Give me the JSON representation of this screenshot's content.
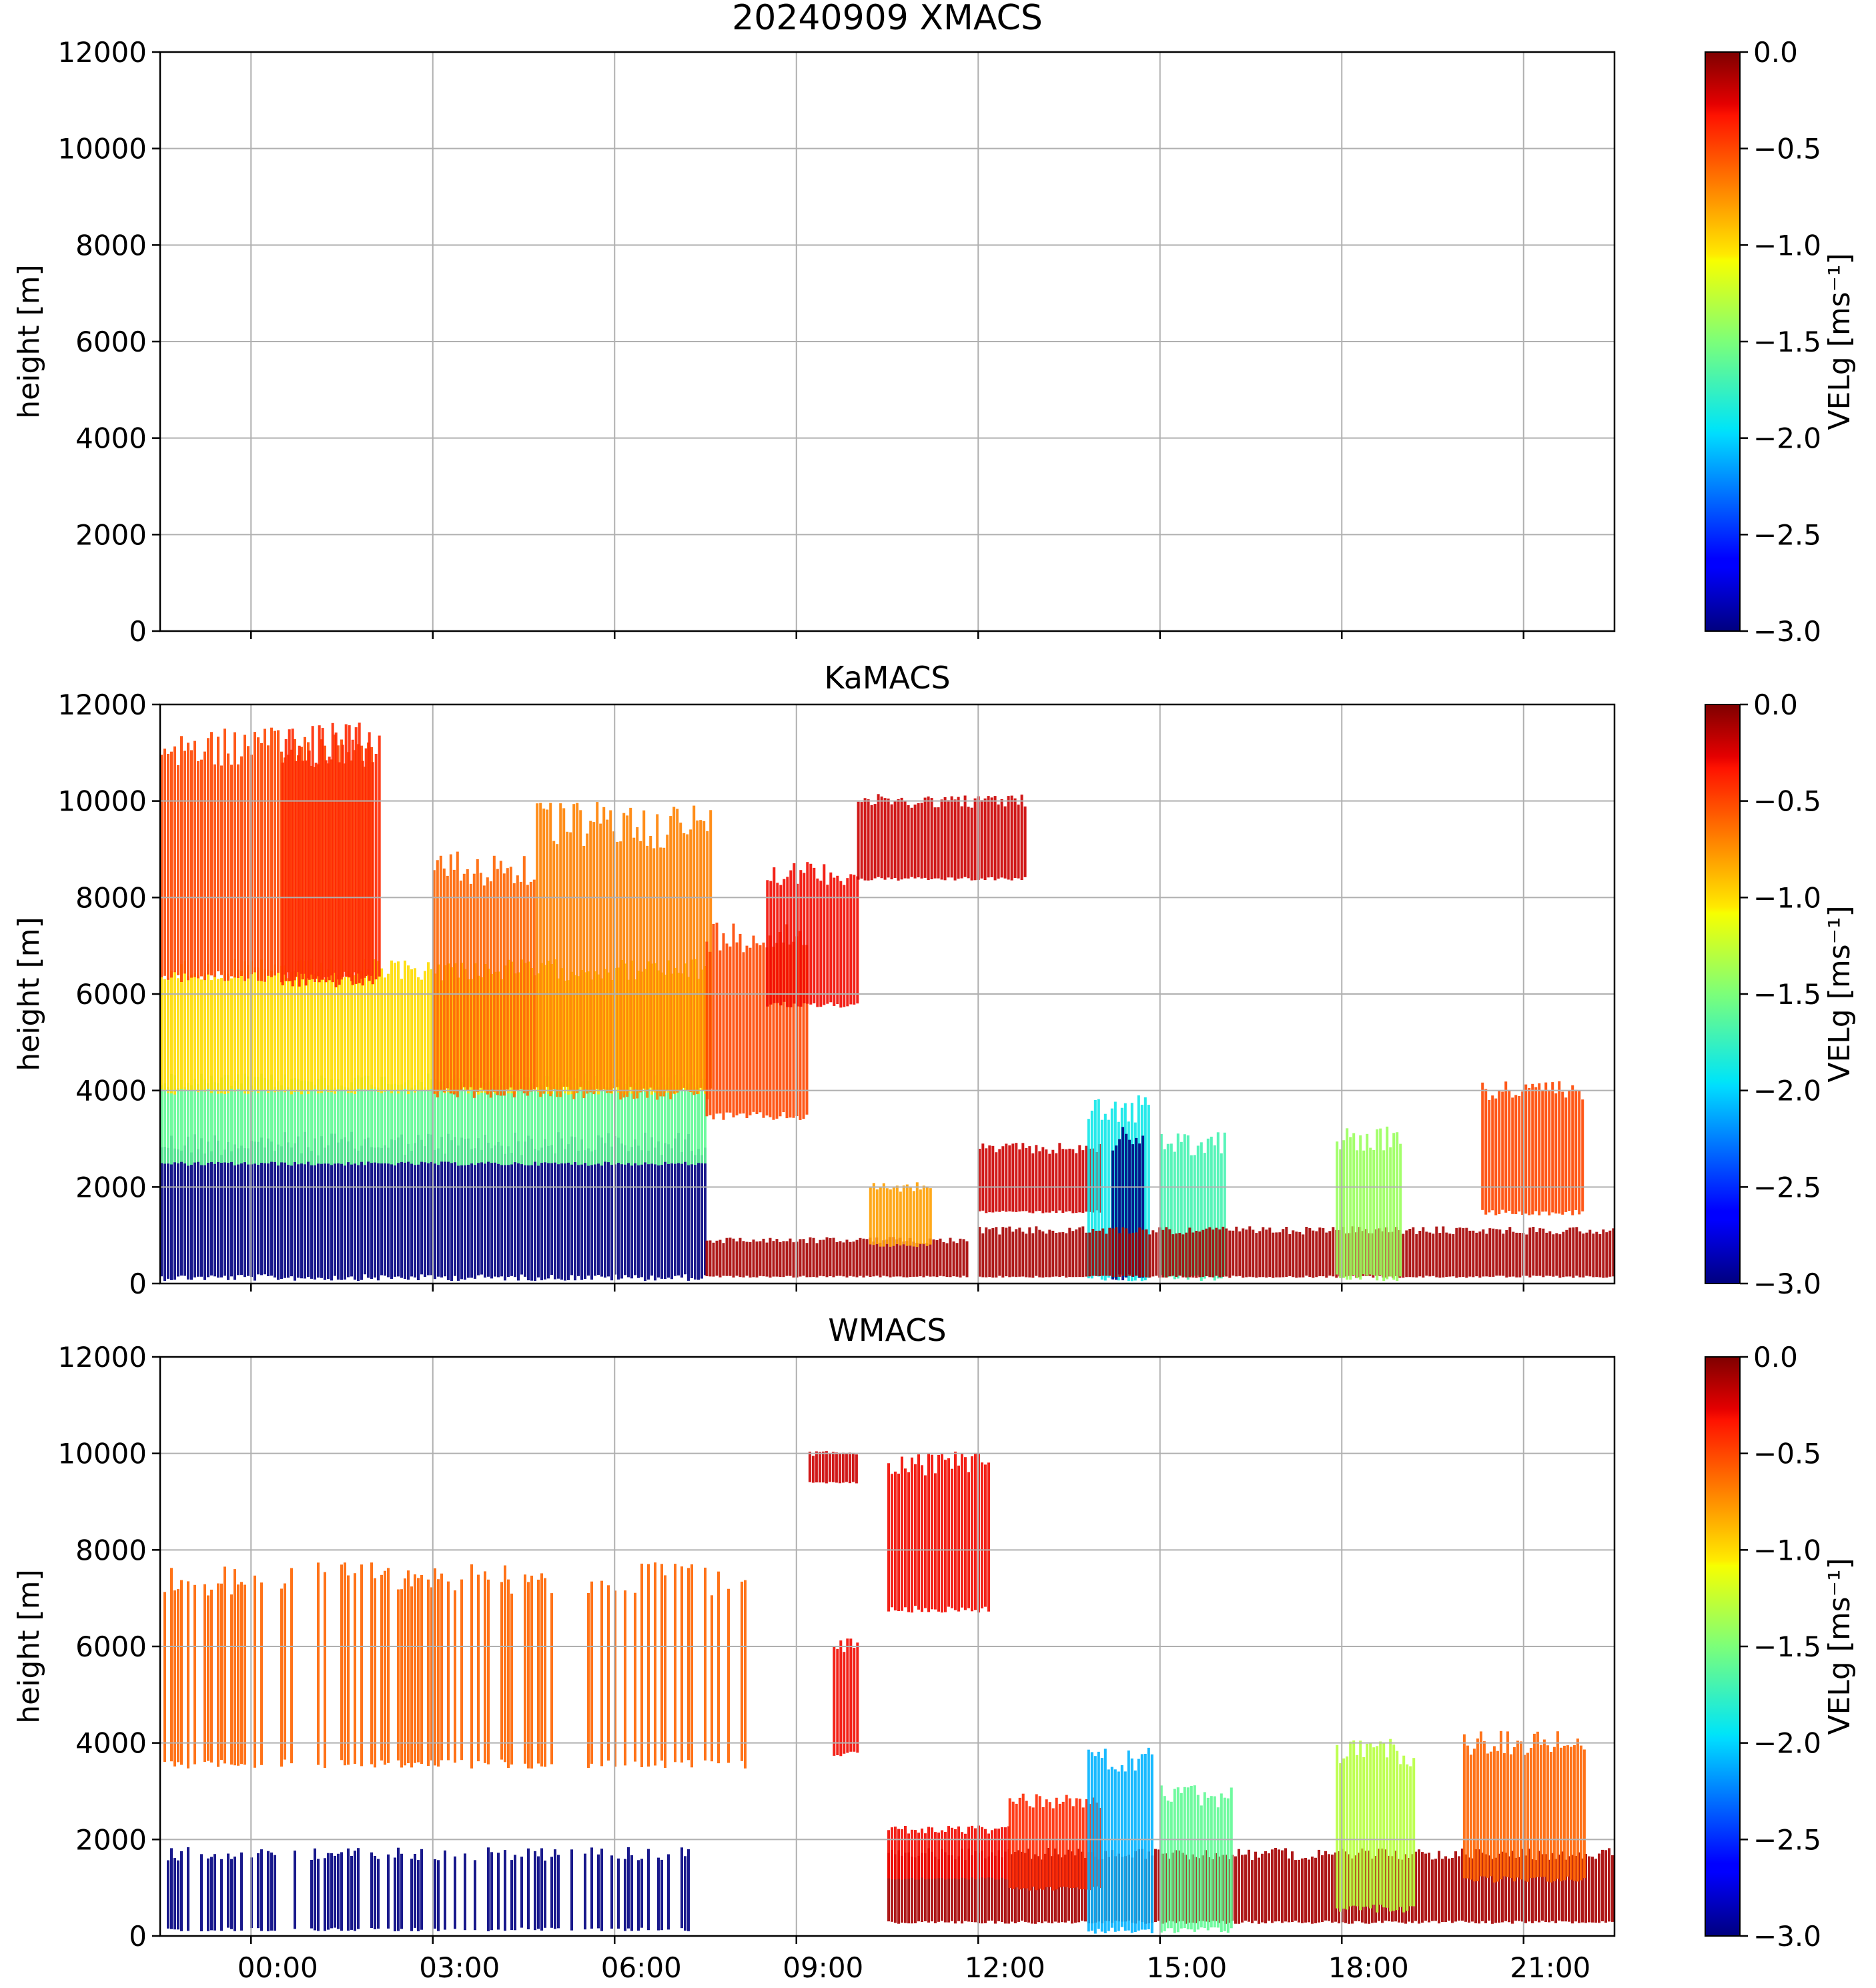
{
  "chart_data": [
    {
      "type": "heatmap",
      "title": "20240909 XMACS",
      "ylabel": "height [m]",
      "ylim": [
        0,
        12000
      ],
      "yticks": [
        "0",
        "2000",
        "4000",
        "6000",
        "8000",
        "10000",
        "12000"
      ],
      "xlim_hours": [
        -1.5,
        22.5
      ],
      "xticks_hours": [
        0,
        3,
        6,
        9,
        12,
        15,
        18,
        21
      ],
      "xtick_labels": [],
      "grid": true,
      "colorbar": {
        "label": "VELg [ms⁻¹]",
        "range": [
          -3.0,
          0.0
        ],
        "ticks": [
          "0.0",
          "−0.5",
          "−1.0",
          "−1.5",
          "−2.0",
          "−2.5",
          "−3.0"
        ]
      },
      "regions": []
    },
    {
      "type": "heatmap",
      "title": "KaMACS",
      "ylabel": "height [m]",
      "ylim": [
        0,
        12000
      ],
      "yticks": [
        "0",
        "2000",
        "4000",
        "6000",
        "8000",
        "10000",
        "12000"
      ],
      "xlim_hours": [
        -1.5,
        22.5
      ],
      "xticks_hours": [
        0,
        3,
        6,
        9,
        12,
        15,
        18,
        21
      ],
      "xtick_labels": [],
      "grid": true,
      "colorbar": {
        "label": "VELg [ms⁻¹]",
        "range": [
          -3.0,
          0.0
        ],
        "ticks": [
          "0.0",
          "−0.5",
          "−1.0",
          "−1.5",
          "−2.0",
          "−2.5",
          "−3.0"
        ]
      },
      "regions": [
        {
          "t": [
            -1.5,
            7.5
          ],
          "h": [
            150,
            2900
          ],
          "v": -3.0,
          "stripes": true
        },
        {
          "t": [
            -1.5,
            7.5
          ],
          "h": [
            2500,
            4200
          ],
          "v": -1.6,
          "stripes": true
        },
        {
          "t": [
            -1.5,
            7.5
          ],
          "h": [
            4000,
            6500
          ],
          "v": -1.0,
          "stripes": true
        },
        {
          "t": [
            -1.5,
            2.0
          ],
          "h": [
            6400,
            11100
          ],
          "v": -0.5,
          "stripes": true
        },
        {
          "t": [
            0.5,
            2.1
          ],
          "h": [
            6300,
            11200
          ],
          "v": -0.4,
          "stripes": true
        },
        {
          "t": [
            3.0,
            4.7
          ],
          "h": [
            4000,
            8600
          ],
          "v": -0.6,
          "stripes": true
        },
        {
          "t": [
            4.7,
            7.6
          ],
          "h": [
            4000,
            9500
          ],
          "v": -0.7,
          "stripes": true
        },
        {
          "t": [
            7.5,
            9.2
          ],
          "h": [
            3500,
            7200
          ],
          "v": -0.5,
          "stripes": true
        },
        {
          "t": [
            8.5,
            10.0
          ],
          "h": [
            5800,
            8500
          ],
          "v": -0.3,
          "stripes": true
        },
        {
          "t": [
            10.0,
            12.8
          ],
          "h": [
            8400,
            10000
          ],
          "v": -0.2,
          "stripes": true
        },
        {
          "t": [
            7.5,
            11.8
          ],
          "h": [
            150,
            900
          ],
          "v": -0.1,
          "stripes": true
        },
        {
          "t": [
            10.2,
            11.2
          ],
          "h": [
            800,
            2000
          ],
          "v": -0.8,
          "stripes": true
        },
        {
          "t": [
            12.0,
            14.0
          ],
          "h": [
            1500,
            2800
          ],
          "v": -0.2,
          "stripes": true
        },
        {
          "t": [
            13.8,
            14.8
          ],
          "h": [
            150,
            3600
          ],
          "v": -1.9,
          "stripes": true
        },
        {
          "t": [
            14.2,
            14.7
          ],
          "h": [
            150,
            3000
          ],
          "v": -3.0,
          "stripes": true
        },
        {
          "t": [
            15.0,
            16.1
          ],
          "h": [
            150,
            2900
          ],
          "v": -1.7,
          "stripes": true
        },
        {
          "t": [
            12.0,
            22.5
          ],
          "h": [
            150,
            1100
          ],
          "v": -0.1,
          "stripes": true
        },
        {
          "t": [
            17.9,
            19.0
          ],
          "h": [
            150,
            3000
          ],
          "v": -1.4,
          "stripes": true
        },
        {
          "t": [
            20.3,
            22.0
          ],
          "h": [
            1500,
            4000
          ],
          "v": -0.5,
          "stripes": true
        }
      ]
    },
    {
      "type": "heatmap",
      "title": "WMACS",
      "ylabel": "height [m]",
      "ylim": [
        0,
        12000
      ],
      "yticks": [
        "0",
        "2000",
        "4000",
        "6000",
        "8000",
        "10000",
        "12000"
      ],
      "xlim_hours": [
        -1.5,
        22.5
      ],
      "xticks_hours": [
        0,
        3,
        6,
        9,
        12,
        15,
        18,
        21
      ],
      "xtick_labels": [
        "00:00",
        "03:00",
        "06:00",
        "09:00",
        "12:00",
        "15:00",
        "18:00",
        "21:00"
      ],
      "grid": true,
      "colorbar": {
        "label": "VELg [ms⁻¹]",
        "range": [
          -3.0,
          0.0
        ],
        "ticks": [
          "0.0",
          "−0.5",
          "−1.0",
          "−1.5",
          "−2.0",
          "−2.5",
          "−3.0"
        ]
      },
      "regions": [
        {
          "t": [
            -1.5,
            7.2
          ],
          "h": [
            150,
            1700
          ],
          "v": -3.0,
          "stripes": true,
          "bursts": 0.5
        },
        {
          "t": [
            -1.5,
            8.2
          ],
          "h": [
            3600,
            7400
          ],
          "v": -0.6,
          "stripes": true,
          "bursts": 0.5
        },
        {
          "t": [
            9.6,
            10.0
          ],
          "h": [
            3800,
            6000
          ],
          "v": -0.3,
          "stripes": true
        },
        {
          "t": [
            10.5,
            12.2
          ],
          "h": [
            6800,
            9800
          ],
          "v": -0.3,
          "stripes": true
        },
        {
          "t": [
            9.2,
            10.0
          ],
          "h": [
            9400,
            10000
          ],
          "v": -0.2,
          "stripes": true
        },
        {
          "t": [
            10.5,
            22.5
          ],
          "h": [
            300,
            1700
          ],
          "v": -0.1,
          "stripes": true
        },
        {
          "t": [
            10.5,
            12.5
          ],
          "h": [
            1200,
            2200
          ],
          "v": -0.3,
          "stripes": true
        },
        {
          "t": [
            12.5,
            14.0
          ],
          "h": [
            1000,
            2800
          ],
          "v": -0.4,
          "stripes": true
        },
        {
          "t": [
            13.8,
            14.9
          ],
          "h": [
            150,
            3600
          ],
          "v": -2.1,
          "stripes": true
        },
        {
          "t": [
            15.0,
            16.2
          ],
          "h": [
            150,
            2900
          ],
          "v": -1.6,
          "stripes": true
        },
        {
          "t": [
            17.9,
            19.2
          ],
          "h": [
            600,
            3800
          ],
          "v": -1.3,
          "stripes": true
        },
        {
          "t": [
            20.0,
            22.0
          ],
          "h": [
            1200,
            4000
          ],
          "v": -0.6,
          "stripes": true
        }
      ]
    }
  ]
}
